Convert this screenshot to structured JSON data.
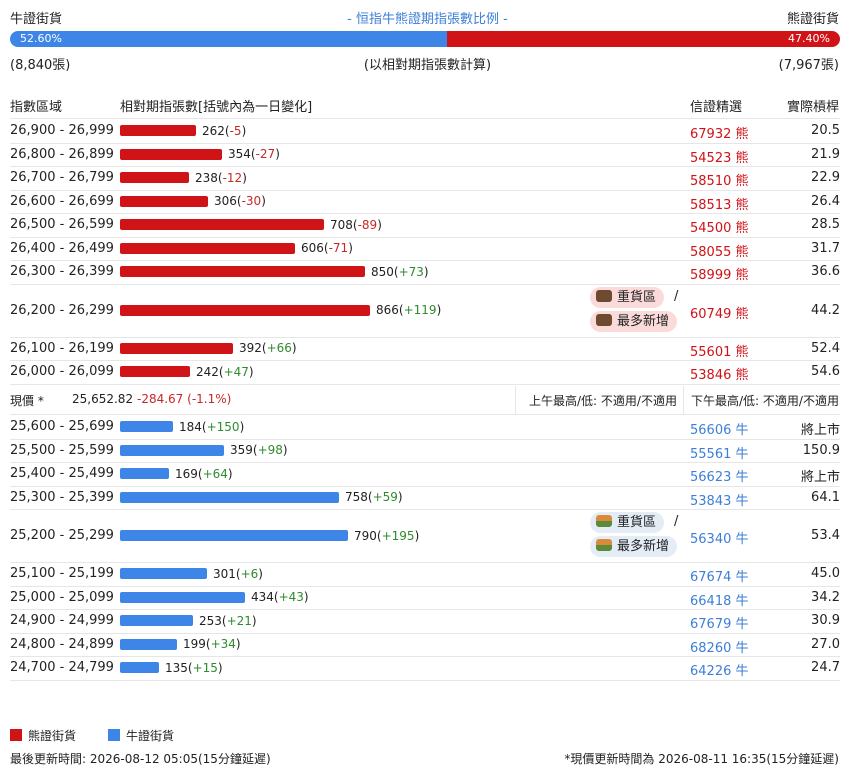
{
  "header": {
    "bull_label": "牛證街貨",
    "bear_label": "熊證街貨",
    "title": "- 恒指牛熊證期指張數比例 -",
    "bull_pct": "52.60%",
    "bear_pct": "47.40%",
    "bull_ratio": 0.526,
    "bull_count": "(8,840張)",
    "bear_count": "(7,967張)",
    "calc_note": "(以相對期指張數計算)"
  },
  "columns": {
    "range": "指數區域",
    "qty": "相對期指張數[括號內為一日變化]",
    "selection": "信證精選",
    "leverage": "實際槓桿"
  },
  "max_qty": 866,
  "bear_rows": [
    {
      "range": "26,900 - 26,999",
      "qty": "262",
      "chg": "-5",
      "code": "67932",
      "unit": "熊",
      "lev": "20.5"
    },
    {
      "range": "26,800 - 26,899",
      "qty": "354",
      "chg": "-27",
      "code": "54523",
      "unit": "熊",
      "lev": "21.9"
    },
    {
      "range": "26,700 - 26,799",
      "qty": "238",
      "chg": "-12",
      "code": "58510",
      "unit": "熊",
      "lev": "22.9"
    },
    {
      "range": "26,600 - 26,699",
      "qty": "306",
      "chg": "-30",
      "code": "58513",
      "unit": "熊",
      "lev": "26.4"
    },
    {
      "range": "26,500 - 26,599",
      "qty": "708",
      "chg": "-89",
      "code": "54500",
      "unit": "熊",
      "lev": "28.5"
    },
    {
      "range": "26,400 - 26,499",
      "qty": "606",
      "chg": "-71",
      "code": "58055",
      "unit": "熊",
      "lev": "31.7"
    },
    {
      "range": "26,300 - 26,399",
      "qty": "850",
      "chg": "+73",
      "code": "58999",
      "unit": "熊",
      "lev": "36.6"
    },
    {
      "range": "26,200 - 26,299",
      "qty": "866",
      "chg": "+119",
      "code": "60749",
      "unit": "熊",
      "lev": "44.2",
      "badges": [
        "重貨區",
        "最多新增"
      ]
    },
    {
      "range": "26,100 - 26,199",
      "qty": "392",
      "chg": "+66",
      "code": "55601",
      "unit": "熊",
      "lev": "52.4"
    },
    {
      "range": "26,000 - 26,099",
      "qty": "242",
      "chg": "+47",
      "code": "53846",
      "unit": "熊",
      "lev": "54.6"
    }
  ],
  "price": {
    "label": "現價 *",
    "value": "25,652.82",
    "change": "-284.67 (-1.1%)",
    "am_hilo": "上午最高/低: 不適用/不適用",
    "pm_hilo": "下午最高/低: 不適用/不適用"
  },
  "bull_rows": [
    {
      "range": "25,600 - 25,699",
      "qty": "184",
      "chg": "+150",
      "code": "56606",
      "unit": "牛",
      "lev": "將上市"
    },
    {
      "range": "25,500 - 25,599",
      "qty": "359",
      "chg": "+98",
      "code": "55561",
      "unit": "牛",
      "lev": "150.9"
    },
    {
      "range": "25,400 - 25,499",
      "qty": "169",
      "chg": "+64",
      "code": "56623",
      "unit": "牛",
      "lev": "將上市"
    },
    {
      "range": "25,300 - 25,399",
      "qty": "758",
      "chg": "+59",
      "code": "53843",
      "unit": "牛",
      "lev": "64.1"
    },
    {
      "range": "25,200 - 25,299",
      "qty": "790",
      "chg": "+195",
      "code": "56340",
      "unit": "牛",
      "lev": "53.4",
      "badges": [
        "重貨區",
        "最多新增"
      ]
    },
    {
      "range": "25,100 - 25,199",
      "qty": "301",
      "chg": "+6",
      "code": "67674",
      "unit": "牛",
      "lev": "45.0"
    },
    {
      "range": "25,000 - 25,099",
      "qty": "434",
      "chg": "+43",
      "code": "66418",
      "unit": "牛",
      "lev": "34.2"
    },
    {
      "range": "24,900 - 24,999",
      "qty": "253",
      "chg": "+21",
      "code": "67679",
      "unit": "牛",
      "lev": "30.9"
    },
    {
      "range": "24,800 - 24,899",
      "qty": "199",
      "chg": "+34",
      "code": "68260",
      "unit": "牛",
      "lev": "27.0"
    },
    {
      "range": "24,700 - 24,799",
      "qty": "135",
      "chg": "+15",
      "code": "64226",
      "unit": "牛",
      "lev": "24.7"
    }
  ],
  "slash": "/",
  "legend": {
    "bear": "熊證街貨",
    "bull": "牛證街貨",
    "bear_color": "#d01317",
    "bull_color": "#3d86e8"
  },
  "footer": {
    "left": "最後更新時間: 2026-08-12 05:05(15分鐘延遲)",
    "right": "*現價更新時間為 2026-08-11 16:35(15分鐘延遲)"
  }
}
